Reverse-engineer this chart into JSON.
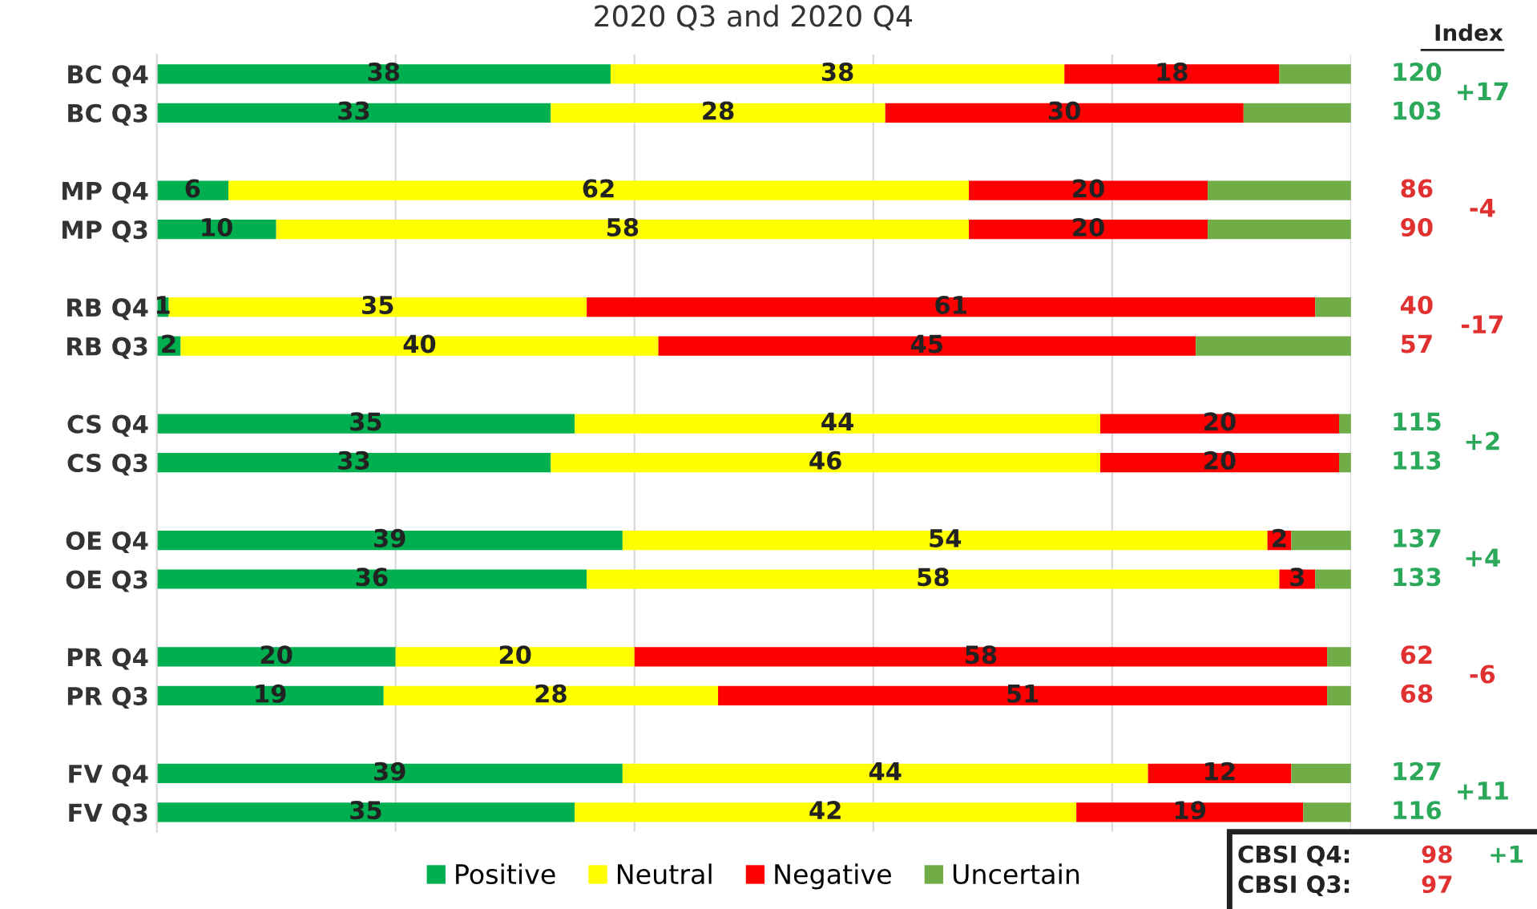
{
  "chart_data": {
    "type": "bar",
    "orientation": "horizontal",
    "stacked": true,
    "title": "2020 Q3 and 2020 Q4",
    "categories": [
      "BC Q4",
      "BC Q3",
      null,
      "MP Q4",
      "MP Q3",
      null,
      "RB Q4",
      "RB Q3",
      null,
      "CS Q4",
      "CS Q3",
      null,
      "OE Q4",
      "OE Q3",
      null,
      "PR Q4",
      "PR Q3",
      null,
      "FV Q4",
      "FV Q3"
    ],
    "series": [
      {
        "name": "Positive",
        "color": "#00b050",
        "values": [
          38,
          33,
          null,
          6,
          10,
          null,
          1,
          2,
          null,
          35,
          33,
          null,
          39,
          36,
          null,
          20,
          19,
          null,
          39,
          35
        ],
        "value_labels": [
          "38",
          "33",
          null,
          "6",
          "10",
          null,
          "1",
          "2",
          null,
          "35",
          "33",
          null,
          "39",
          "36",
          null,
          "20",
          "19",
          null,
          "39",
          "35"
        ]
      },
      {
        "name": "Neutral",
        "color": "#ffff00",
        "values": [
          38,
          28,
          null,
          62,
          58,
          null,
          35,
          40,
          null,
          44,
          46,
          null,
          54,
          58,
          null,
          20,
          28,
          null,
          44,
          42
        ],
        "value_labels": [
          "38",
          "28",
          null,
          "62",
          "58",
          null,
          "35",
          "40",
          null,
          "44",
          "46",
          null,
          "54",
          "58",
          null,
          "20",
          "28",
          null,
          "44",
          "42"
        ]
      },
      {
        "name": "Negative",
        "color": "#ff0000",
        "values": [
          18,
          30,
          null,
          20,
          20,
          null,
          61,
          45,
          null,
          20,
          20,
          null,
          2,
          3,
          null,
          58,
          51,
          null,
          12,
          19
        ],
        "value_labels": [
          "18",
          "30",
          null,
          "20",
          "20",
          null,
          "61",
          "45",
          null,
          "20",
          "20",
          null,
          "2",
          "3",
          null,
          "58",
          "51",
          null,
          "12",
          "19"
        ]
      },
      {
        "name": "Uncertain",
        "color": "#70ad47",
        "values": [
          6,
          9,
          null,
          12,
          12,
          null,
          3,
          13,
          null,
          1,
          1,
          null,
          5,
          3,
          null,
          2,
          2,
          null,
          5,
          4
        ]
      }
    ],
    "xlim": [
      0,
      100
    ],
    "xticks": [
      {
        "value": 0,
        "label": null
      },
      {
        "value": 20,
        "label": null
      },
      {
        "value": 40,
        "label": null
      },
      {
        "value": 60,
        "label": null
      },
      {
        "value": 80,
        "label": null
      },
      {
        "value": 100,
        "label": null
      }
    ],
    "grid": "x",
    "legend": "bottom",
    "annotations": [
      "Index",
      "120",
      "103",
      "+17",
      "86",
      "90",
      "-4",
      "40",
      "57",
      "-17",
      "115",
      "113",
      "+2",
      "137",
      "133",
      "+4",
      "62",
      "68",
      "-6",
      "127",
      "116",
      "+11",
      "CBSI Q4:",
      "98",
      "+1",
      "CBSI Q3:",
      "97"
    ]
  }
}
